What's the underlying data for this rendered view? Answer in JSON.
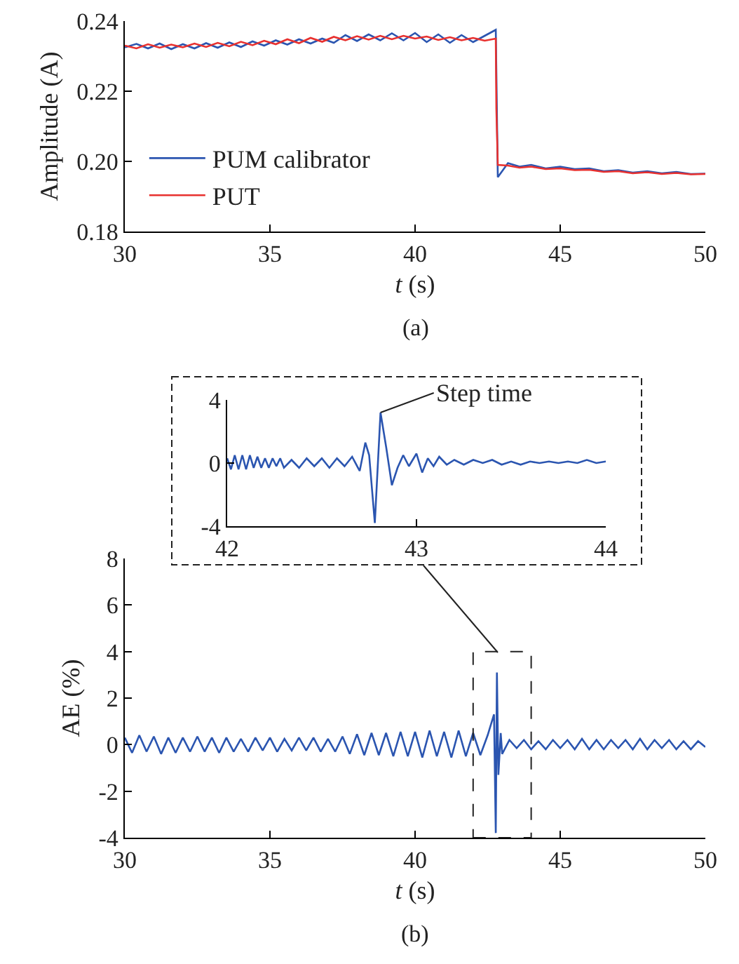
{
  "chart_data": [
    {
      "type": "line",
      "xlabel": "t (s)",
      "ylabel": "Amplitude (A)",
      "xlim": [
        30,
        50
      ],
      "xticks": [
        30,
        35,
        40,
        45,
        50
      ],
      "ylim": [
        0.18,
        0.24
      ],
      "yticks": [
        0.18,
        {
          "value": 0.2,
          "label": "0.20"
        },
        0.22,
        0.24
      ],
      "grid": false,
      "legend": "bottom left",
      "annotations": [
        "(a)"
      ],
      "x": [
        30,
        30.4,
        30.8,
        31.2,
        31.6,
        32,
        32.4,
        32.8,
        33.2,
        33.6,
        34,
        34.4,
        34.8,
        35.2,
        35.6,
        36,
        36.4,
        36.8,
        37.2,
        37.6,
        38,
        38.4,
        38.8,
        39.2,
        39.6,
        40,
        40.4,
        40.8,
        41.2,
        41.6,
        42,
        42.4,
        42.78,
        42.8,
        42.85,
        43.2,
        43.6,
        44,
        44.5,
        45,
        45.5,
        46,
        46.5,
        47,
        47.5,
        48,
        48.5,
        49,
        49.5,
        50
      ],
      "series": [
        {
          "name": "PUM calibrator",
          "color": "#2b55b0",
          "values": [
            0.2325,
            0.2335,
            0.2322,
            0.2336,
            0.232,
            0.2334,
            0.2322,
            0.2337,
            0.2324,
            0.2339,
            0.2326,
            0.2342,
            0.233,
            0.2345,
            0.2333,
            0.2348,
            0.2336,
            0.235,
            0.2338,
            0.236,
            0.2343,
            0.2362,
            0.2345,
            0.2365,
            0.2345,
            0.2366,
            0.234,
            0.2362,
            0.2338,
            0.236,
            0.234,
            0.2358,
            0.2375,
            null,
            0.1955,
            0.1995,
            0.1985,
            0.199,
            0.198,
            0.1985,
            0.1978,
            0.198,
            0.1972,
            0.1975,
            0.1968,
            0.1972,
            0.1966,
            0.197,
            0.1964,
            0.1965
          ]
        },
        {
          "name": "PUT",
          "color": "#e8312f",
          "values": [
            0.233,
            0.2322,
            0.2334,
            0.2324,
            0.2333,
            0.2325,
            0.2336,
            0.2326,
            0.2338,
            0.2328,
            0.2341,
            0.2331,
            0.2344,
            0.2334,
            0.2348,
            0.2337,
            0.2352,
            0.2341,
            0.2355,
            0.2345,
            0.2357,
            0.2347,
            0.2358,
            0.2348,
            0.2358,
            0.235,
            0.2356,
            0.2346,
            0.2354,
            0.2345,
            0.2352,
            0.2344,
            0.235,
            0.215,
            0.199,
            0.1988,
            0.1982,
            0.1985,
            0.1978,
            0.198,
            0.1975,
            0.1976,
            0.197,
            0.1972,
            0.1966,
            0.1969,
            0.1964,
            0.1967,
            0.1963,
            0.1964
          ]
        }
      ]
    },
    {
      "type": "line",
      "xlim": [
        42,
        44
      ],
      "xticks": [
        42,
        43,
        44
      ],
      "ylim": [
        -4,
        4
      ],
      "yticks": [
        -4,
        0,
        4
      ],
      "grid": false,
      "annotations": [
        {
          "text": "Step time",
          "x": 42.81,
          "y": 3.2
        }
      ],
      "x": [
        42,
        42.02,
        42.04,
        42.06,
        42.08,
        42.1,
        42.12,
        42.14,
        42.16,
        42.18,
        42.2,
        42.22,
        42.24,
        42.26,
        42.28,
        42.3,
        42.34,
        42.38,
        42.42,
        42.46,
        42.5,
        42.54,
        42.58,
        42.62,
        42.66,
        42.7,
        42.73,
        42.75,
        42.78,
        42.81,
        42.84,
        42.87,
        42.9,
        42.93,
        42.96,
        43,
        43.03,
        43.06,
        43.09,
        43.12,
        43.16,
        43.2,
        43.25,
        43.3,
        43.35,
        43.4,
        43.45,
        43.5,
        43.55,
        43.6,
        43.65,
        43.7,
        43.75,
        43.8,
        43.85,
        43.9,
        43.95,
        44
      ],
      "series": [
        {
          "color": "#2b55b0",
          "values": [
            0.3,
            -0.4,
            0.5,
            -0.4,
            0.5,
            -0.4,
            0.5,
            -0.3,
            0.4,
            -0.3,
            0.3,
            -0.3,
            0.3,
            -0.2,
            0.3,
            -0.3,
            0.2,
            -0.3,
            0.3,
            -0.2,
            0.3,
            -0.3,
            0.3,
            -0.2,
            0.4,
            -0.5,
            1.3,
            0.5,
            -3.8,
            3.2,
            1.0,
            -1.4,
            -0.3,
            0.5,
            -0.2,
            0.6,
            -0.6,
            0.3,
            -0.2,
            0.4,
            -0.1,
            0.2,
            -0.1,
            0.2,
            0,
            0.2,
            -0.1,
            0.1,
            -0.1,
            0.1,
            0,
            0.1,
            0,
            0.1,
            0,
            0.2,
            0,
            0.1
          ]
        }
      ]
    },
    {
      "type": "line",
      "xlabel": "t (s)",
      "ylabel": "AE (%)",
      "xlim": [
        30,
        50
      ],
      "xticks": [
        30,
        35,
        40,
        45,
        50
      ],
      "ylim": [
        -4,
        8
      ],
      "yticks": [
        -4,
        -2,
        0,
        2,
        4,
        6,
        8
      ],
      "grid": false,
      "annotations": [
        "(b)"
      ],
      "x": [
        30,
        30.25,
        30.5,
        30.75,
        31,
        31.25,
        31.5,
        31.75,
        32,
        32.25,
        32.5,
        32.75,
        33,
        33.25,
        33.5,
        33.75,
        34,
        34.25,
        34.5,
        34.75,
        35,
        35.25,
        35.5,
        35.75,
        36,
        36.25,
        36.5,
        36.75,
        37,
        37.25,
        37.5,
        37.75,
        38,
        38.25,
        38.5,
        38.75,
        39,
        39.25,
        39.5,
        39.75,
        40,
        40.25,
        40.5,
        40.75,
        41,
        41.25,
        41.5,
        41.75,
        42,
        42.25,
        42.5,
        42.72,
        42.78,
        42.82,
        42.87,
        42.95,
        43,
        43.25,
        43.5,
        43.75,
        44,
        44.25,
        44.5,
        44.75,
        45,
        45.25,
        45.5,
        45.75,
        46,
        46.25,
        46.5,
        46.75,
        47,
        47.25,
        47.5,
        47.75,
        48,
        48.25,
        48.5,
        48.75,
        49,
        49.25,
        49.5,
        49.75,
        50
      ],
      "series": [
        {
          "color": "#2b55b0",
          "values": [
            0.3,
            -0.35,
            0.4,
            -0.3,
            0.35,
            -0.4,
            0.3,
            -0.35,
            0.3,
            -0.3,
            0.35,
            -0.3,
            0.3,
            -0.35,
            0.3,
            -0.3,
            0.25,
            -0.3,
            0.3,
            -0.25,
            0.3,
            -0.3,
            0.25,
            -0.25,
            0.3,
            -0.25,
            0.3,
            -0.3,
            0.25,
            -0.3,
            0.35,
            -0.4,
            0.45,
            -0.45,
            0.5,
            -0.45,
            0.5,
            -0.5,
            0.55,
            -0.5,
            0.55,
            -0.55,
            0.6,
            -0.5,
            0.55,
            -0.55,
            0.6,
            -0.5,
            0.5,
            -0.45,
            0.4,
            1.3,
            -3.8,
            3.1,
            -1.3,
            0.5,
            -0.4,
            0.2,
            -0.15,
            0.2,
            -0.2,
            0.15,
            -0.2,
            0.2,
            -0.15,
            0.2,
            -0.2,
            0.25,
            -0.2,
            0.2,
            -0.2,
            0.2,
            -0.15,
            0.2,
            -0.2,
            0.25,
            -0.2,
            0.2,
            -0.15,
            0.2,
            -0.2,
            0.15,
            -0.2,
            0.15,
            -0.1
          ]
        }
      ]
    }
  ]
}
